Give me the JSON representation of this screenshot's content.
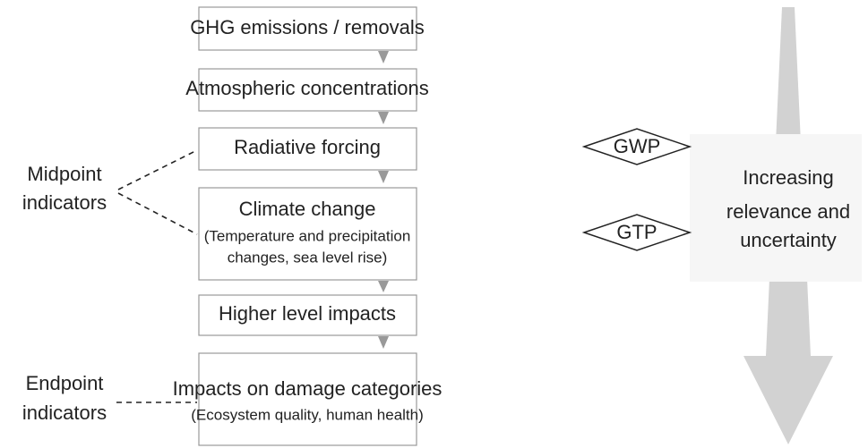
{
  "boxes": [
    {
      "title": "GHG emissions / removals"
    },
    {
      "title": "Atmospheric concentrations"
    },
    {
      "title": "Radiative forcing"
    },
    {
      "title": "Climate change",
      "subtitle": [
        "(Temperature and precipitation",
        "changes, sea level rise)"
      ]
    },
    {
      "title": "Higher level impacts"
    },
    {
      "title": "Impacts on damage categories",
      "subtitle": [
        "(Ecosystem quality, human health)"
      ]
    }
  ],
  "midpoint_label": [
    "Midpoint",
    "indicators"
  ],
  "endpoint_label": [
    "Endpoint",
    "indicators"
  ],
  "metrics": [
    "GWP",
    "GTP"
  ],
  "arrow_label": [
    "Increasing",
    "relevance and",
    "uncertainty"
  ]
}
